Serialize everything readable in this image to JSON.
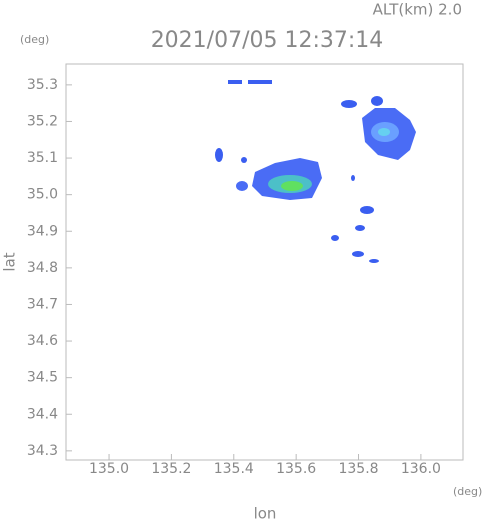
{
  "chart_data": {
    "type": "radar-map",
    "header": "ALT(km) 2.0",
    "title": "2021/07/05 12:37:14",
    "x_unit": "(deg)",
    "y_unit": "(deg)",
    "x_label": "lon",
    "y_label": "lat",
    "xlim": [
      134.862,
      136.135
    ],
    "ylim": [
      34.275,
      35.357
    ],
    "xticks": [
      {
        "value": 135,
        "label": "135.0"
      },
      135.2,
      135.4,
      135.6,
      135.8,
      {
        "value": 136,
        "label": "136.0"
      }
    ],
    "yticks": [
      34.3,
      34.4,
      34.5,
      34.6,
      34.7,
      34.8,
      34.9,
      {
        "value": 35,
        "label": "35.0"
      },
      35.1,
      35.2,
      35.3
    ]
  }
}
